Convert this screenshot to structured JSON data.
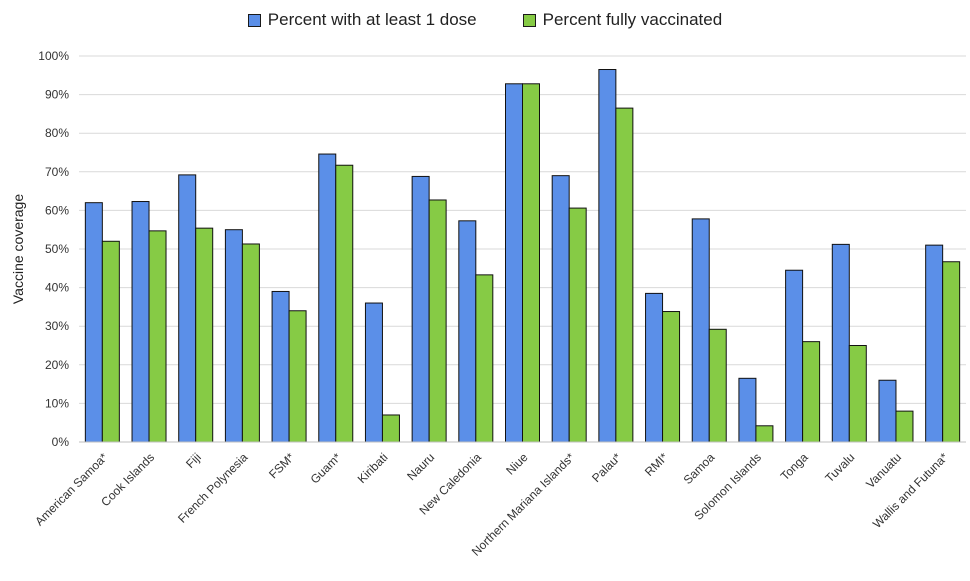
{
  "chart_data": {
    "type": "bar",
    "ylabel": "Vaccine coverage",
    "xlabel": "",
    "ylim": [
      0,
      100
    ],
    "yticks": [
      "0%",
      "10%",
      "20%",
      "30%",
      "40%",
      "50%",
      "60%",
      "70%",
      "80%",
      "90%",
      "100%"
    ],
    "grid": true,
    "legend_position": "top",
    "categories": [
      "American Samoa*",
      "Cook Islands",
      "Fiji",
      "French Polynesia",
      "FSM*",
      "Guam*",
      "Kiribati",
      "Nauru",
      "New Caledonia",
      "Niue",
      "Northern Mariana Islands*",
      "Palau*",
      "RMI*",
      "Samoa",
      "Solomon Islands",
      "Tonga",
      "Tuvalu",
      "Vanuatu",
      "Wallis and Futuna*"
    ],
    "series": [
      {
        "name": "Percent with at least 1 dose",
        "color": "#5B8FE8",
        "values": [
          62,
          62.3,
          69.2,
          55,
          39,
          74.6,
          36,
          68.8,
          57.3,
          92.8,
          69,
          96.5,
          38.5,
          57.8,
          16.5,
          44.5,
          51.2,
          16,
          51
        ]
      },
      {
        "name": "Percent fully vaccinated",
        "color": "#86CB45",
        "values": [
          52,
          54.7,
          55.4,
          51.3,
          34,
          71.7,
          7,
          62.7,
          43.3,
          92.8,
          60.6,
          86.5,
          33.8,
          29.2,
          4.2,
          26,
          25,
          8,
          46.7
        ]
      }
    ]
  }
}
